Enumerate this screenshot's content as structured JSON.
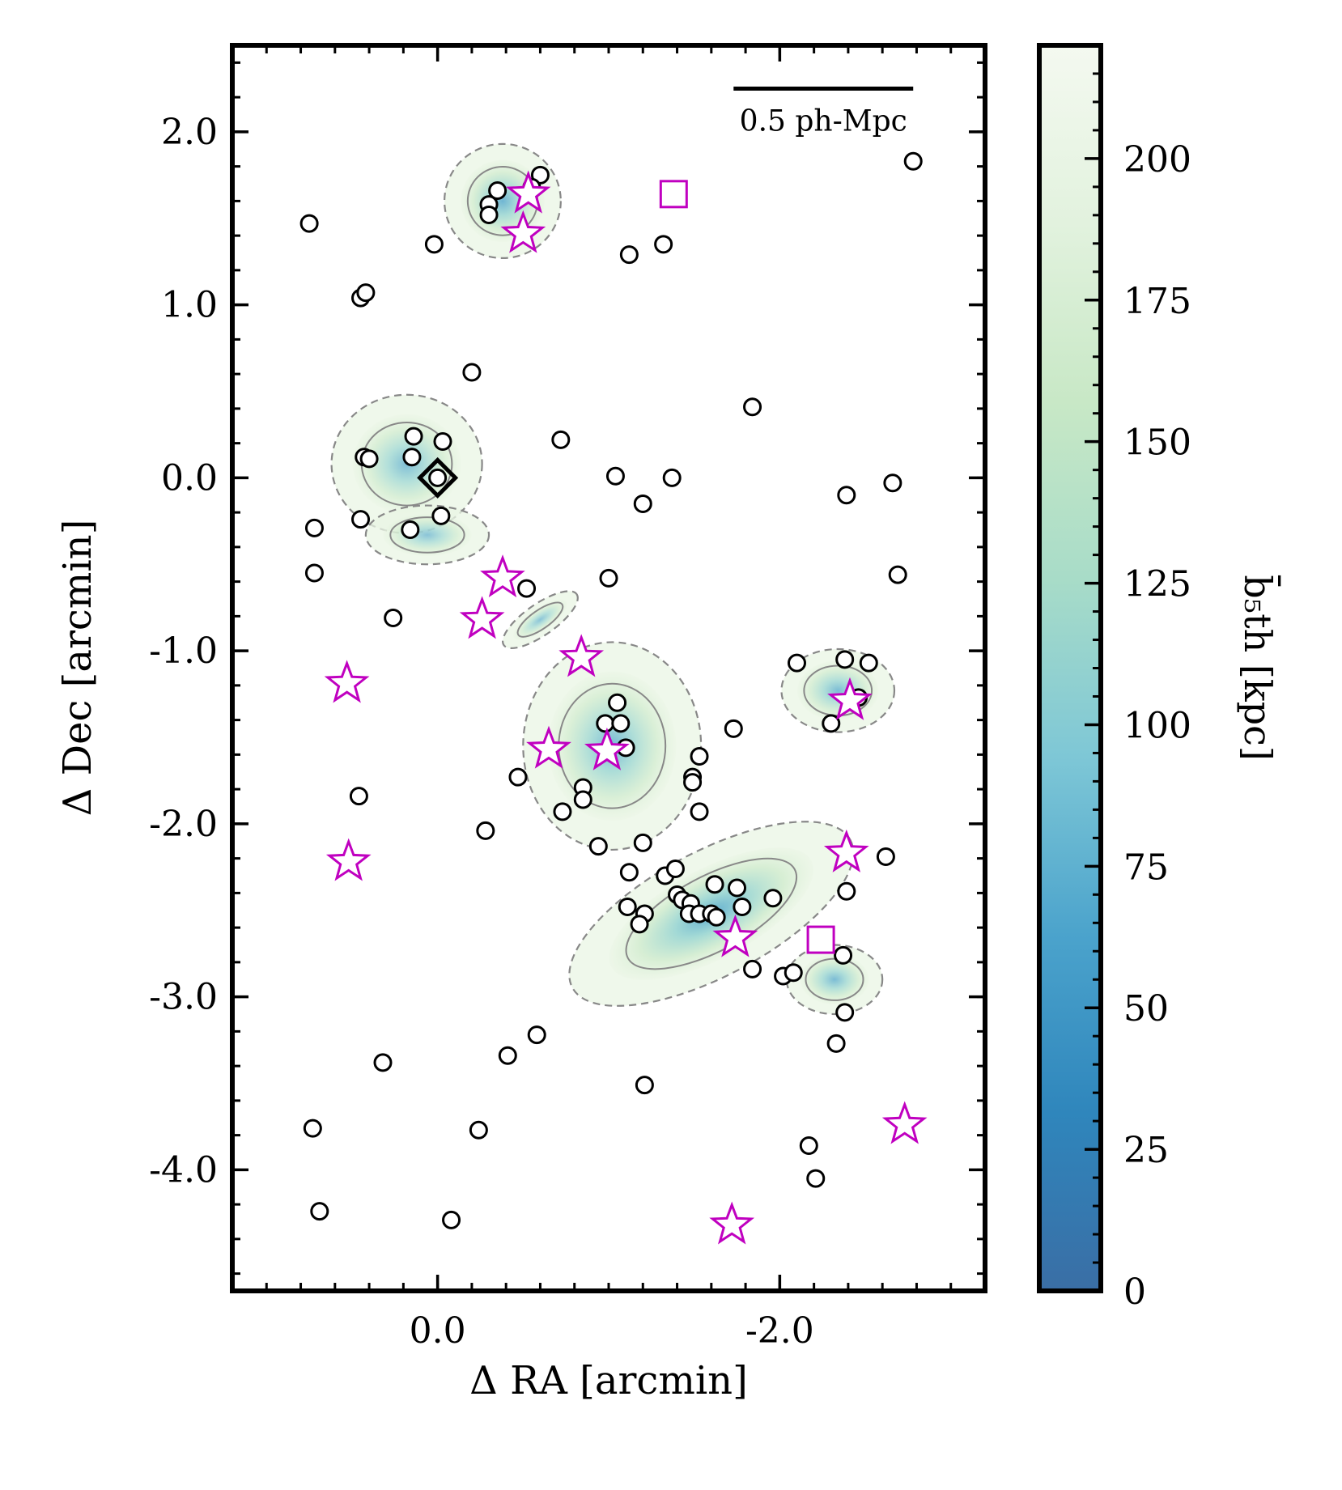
{
  "chart_data": {
    "type": "scatter",
    "xlabel": "Δ RA [arcmin]",
    "ylabel": "Δ Dec [arcmin]",
    "xlim": [
      1.2,
      -3.2
    ],
    "ylim": [
      -4.7,
      2.5
    ],
    "x_ticks": [
      {
        "value": 0.0,
        "label": "0.0"
      },
      {
        "value": -2.0,
        "label": "-2.0"
      }
    ],
    "y_ticks": [
      {
        "value": 2.0,
        "label": "2.0"
      },
      {
        "value": 1.0,
        "label": "1.0"
      },
      {
        "value": 0.0,
        "label": "0.0"
      },
      {
        "value": -1.0,
        "label": "-1.0"
      },
      {
        "value": -2.0,
        "label": "-2.0"
      },
      {
        "value": -3.0,
        "label": "-3.0"
      },
      {
        "value": -4.0,
        "label": "-4.0"
      }
    ],
    "scale_bar": {
      "label": "0.5 ph-Mpc",
      "x_start": -1.73,
      "x_end": -2.78,
      "y": 2.25
    },
    "colorbar": {
      "label": "b̄₅th [kpc]",
      "range": [
        0,
        220
      ],
      "ticks": [
        0,
        25,
        50,
        75,
        100,
        125,
        150,
        175,
        200
      ],
      "colors": [
        "#3a6ea5",
        "#2f86bc",
        "#4ba3cc",
        "#7ec7d6",
        "#a8dcc8",
        "#c8e8c6",
        "#e2f2de",
        "#f4f9f0"
      ]
    },
    "series": [
      {
        "name": "galaxies",
        "marker": "circle",
        "points": [
          [
            -0.6,
            1.75
          ],
          [
            -0.55,
            1.68
          ],
          [
            -0.35,
            1.66
          ],
          [
            -0.3,
            1.58
          ],
          [
            -0.3,
            1.52
          ],
          [
            0.02,
            1.35
          ],
          [
            0.75,
            1.47
          ],
          [
            -1.12,
            1.29
          ],
          [
            -1.32,
            1.35
          ],
          [
            -2.78,
            1.83
          ],
          [
            0.45,
            1.04
          ],
          [
            0.42,
            1.07
          ],
          [
            -0.2,
            0.61
          ],
          [
            -1.84,
            0.41
          ],
          [
            -0.72,
            0.22
          ],
          [
            0.14,
            0.24
          ],
          [
            -0.03,
            0.21
          ],
          [
            0.43,
            0.12
          ],
          [
            0.4,
            0.11
          ],
          [
            0.15,
            0.12
          ],
          [
            0.0,
            0.0
          ],
          [
            -1.04,
            0.01
          ],
          [
            -1.37,
            0.0
          ],
          [
            -1.2,
            -0.15
          ],
          [
            -2.39,
            -0.1
          ],
          [
            -2.66,
            -0.03
          ],
          [
            0.72,
            -0.29
          ],
          [
            0.45,
            -0.24
          ],
          [
            0.16,
            -0.3
          ],
          [
            -0.02,
            -0.22
          ],
          [
            0.72,
            -0.55
          ],
          [
            -0.52,
            -0.64
          ],
          [
            -1.0,
            -0.58
          ],
          [
            -2.69,
            -0.56
          ],
          [
            0.26,
            -0.81
          ],
          [
            -2.1,
            -1.07
          ],
          [
            -2.38,
            -1.05
          ],
          [
            -2.52,
            -1.07
          ],
          [
            -2.46,
            -1.27
          ],
          [
            -2.3,
            -1.42
          ],
          [
            -1.05,
            -1.3
          ],
          [
            -0.98,
            -1.42
          ],
          [
            -1.07,
            -1.42
          ],
          [
            -1.1,
            -1.56
          ],
          [
            -1.73,
            -1.45
          ],
          [
            -1.53,
            -1.61
          ],
          [
            -1.49,
            -1.73
          ],
          [
            -1.49,
            -1.76
          ],
          [
            -0.47,
            -1.73
          ],
          [
            -0.85,
            -1.79
          ],
          [
            -0.85,
            -1.86
          ],
          [
            -0.73,
            -1.93
          ],
          [
            -1.53,
            -1.93
          ],
          [
            0.46,
            -1.84
          ],
          [
            -0.28,
            -2.04
          ],
          [
            -0.94,
            -2.13
          ],
          [
            -1.2,
            -2.11
          ],
          [
            -2.62,
            -2.19
          ],
          [
            -1.12,
            -2.28
          ],
          [
            -1.33,
            -2.3
          ],
          [
            -1.39,
            -2.26
          ],
          [
            -1.62,
            -2.35
          ],
          [
            -1.75,
            -2.37
          ],
          [
            -2.39,
            -2.39
          ],
          [
            -1.11,
            -2.48
          ],
          [
            -1.21,
            -2.52
          ],
          [
            -1.4,
            -2.41
          ],
          [
            -1.43,
            -2.44
          ],
          [
            -1.48,
            -2.46
          ],
          [
            -1.47,
            -2.52
          ],
          [
            -1.53,
            -2.52
          ],
          [
            -1.6,
            -2.52
          ],
          [
            -1.63,
            -2.54
          ],
          [
            -1.78,
            -2.48
          ],
          [
            -1.96,
            -2.43
          ],
          [
            -1.18,
            -2.58
          ],
          [
            -1.84,
            -2.84
          ],
          [
            -2.02,
            -2.88
          ],
          [
            -2.08,
            -2.86
          ],
          [
            -2.37,
            -2.76
          ],
          [
            -2.38,
            -3.09
          ],
          [
            -2.33,
            -3.27
          ],
          [
            -0.58,
            -3.22
          ],
          [
            -0.41,
            -3.34
          ],
          [
            0.32,
            -3.38
          ],
          [
            -1.21,
            -3.51
          ],
          [
            0.73,
            -3.76
          ],
          [
            -0.24,
            -3.77
          ],
          [
            -2.17,
            -3.86
          ],
          [
            -2.21,
            -4.05
          ],
          [
            0.69,
            -4.24
          ],
          [
            -0.08,
            -4.29
          ]
        ]
      },
      {
        "name": "stars",
        "marker": "star",
        "points": [
          [
            -0.53,
            1.64
          ],
          [
            -0.5,
            1.41
          ],
          [
            -0.38,
            -0.58
          ],
          [
            -0.26,
            -0.82
          ],
          [
            -0.84,
            -1.04
          ],
          [
            -2.41,
            -1.29
          ],
          [
            0.53,
            -1.19
          ],
          [
            -0.65,
            -1.57
          ],
          [
            -0.99,
            -1.58
          ],
          [
            -2.39,
            -2.17
          ],
          [
            0.52,
            -2.22
          ],
          [
            -1.74,
            -2.66
          ],
          [
            -2.73,
            -3.74
          ],
          [
            -1.72,
            -4.32
          ]
        ]
      },
      {
        "name": "squares",
        "marker": "square",
        "points": [
          [
            -1.38,
            1.64
          ],
          [
            -2.24,
            -2.67
          ]
        ]
      },
      {
        "name": "diamond",
        "marker": "diamond",
        "points": [
          [
            0.0,
            0.0
          ]
        ]
      }
    ],
    "density_regions": [
      {
        "center": [
          -0.38,
          1.6
        ],
        "radius": [
          0.34,
          0.33
        ],
        "rotation": 0,
        "depth": 0.55
      },
      {
        "center": [
          0.18,
          0.08
        ],
        "radius": [
          0.44,
          0.4
        ],
        "rotation": 0,
        "depth": 0.3
      },
      {
        "center": [
          0.06,
          -0.33
        ],
        "radius": [
          0.36,
          0.17
        ],
        "rotation": 0,
        "depth": 0.12
      },
      {
        "center": [
          -0.6,
          -0.82
        ],
        "radius": [
          0.26,
          0.09
        ],
        "rotation": -35,
        "depth": 0.12
      },
      {
        "center": [
          -1.02,
          -1.55
        ],
        "radius": [
          0.52,
          0.6
        ],
        "rotation": 0,
        "depth": 0.45
      },
      {
        "center": [
          -1.6,
          -2.52
        ],
        "radius": [
          0.92,
          0.36
        ],
        "rotation": -28,
        "depth": 0.75
      },
      {
        "center": [
          -2.32,
          -2.9
        ],
        "radius": [
          0.28,
          0.2
        ],
        "rotation": 0,
        "depth": 0.35
      },
      {
        "center": [
          -2.34,
          -1.23
        ],
        "radius": [
          0.33,
          0.24
        ],
        "rotation": 0,
        "depth": 0.35
      }
    ]
  }
}
